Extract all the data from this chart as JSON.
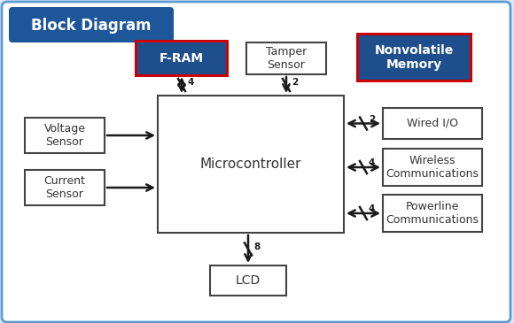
{
  "title": "Block Diagram",
  "title_bg": "#1e5799",
  "title_text_color": "#ffffff",
  "outer_bg": "#dce8f5",
  "outer_border": "#5b9bd5",
  "inner_bg": "#ffffff",
  "mcu_label": "Microcontroller",
  "fram_label": "F-RAM",
  "fram_bg": "#1e4f8c",
  "fram_text": "#ffffff",
  "fram_border": "#cc0000",
  "nonvol_label": "Nonvolatile\nMemory",
  "nonvol_bg": "#1e4f8c",
  "nonvol_text": "#ffffff",
  "nonvol_border": "#cc0000",
  "tamper_label": "Tamper\nSensor",
  "lcd_label": "LCD",
  "voltage_label": "Voltage\nSensor",
  "current_label": "Current\nSensor",
  "wired_label": "Wired I/O",
  "wireless_label": "Wireless\nCommunications",
  "powerline_label": "Powerline\nCommunications",
  "arrow_color": "#1a1a1a",
  "box_border": "#444444",
  "bus_labels": {
    "fram": "4",
    "tamper": "2",
    "lcd": "8",
    "wired": "2",
    "wireless": "4",
    "powerline": "4"
  }
}
